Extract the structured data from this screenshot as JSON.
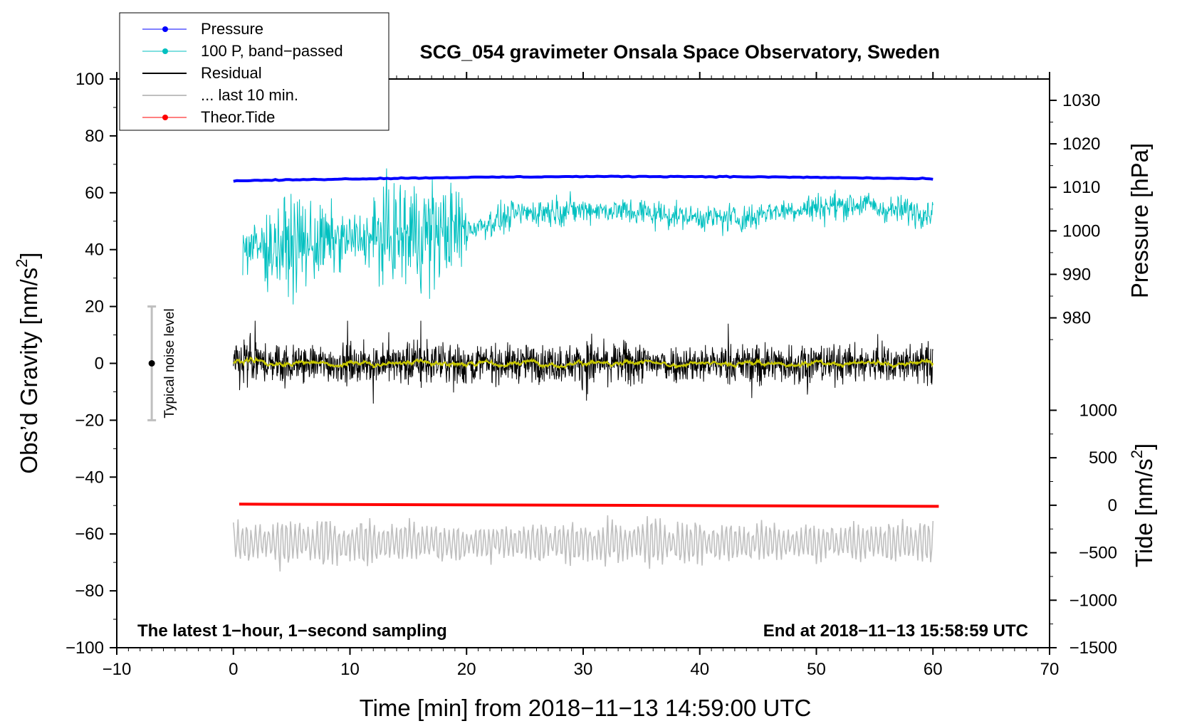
{
  "chart_data": {
    "type": "line",
    "title": "SCG_054 gravimeter Onsala Space Observatory, Sweden",
    "xlabel": "Time [min] from 2018−11−13 14:59:00 UTC",
    "ylabel_left": "Obs’d Gravity [nm/s2]",
    "ylabel_left_main": "Obs’d Gravity [nm/s",
    "ylabel_left_sup": "2",
    "ylabel_left_end": "]",
    "ylabel_pressure": "Pressure [hPa]",
    "ylabel_tide": "Tide [nm/s2]",
    "ylabel_tide_main": "Tide [nm/s",
    "ylabel_tide_sup": "2",
    "ylabel_tide_end": "]",
    "xlim": [
      -10,
      70
    ],
    "ylim": [
      -100,
      100
    ],
    "x_ticks": [
      "−10",
      "0",
      "10",
      "20",
      "30",
      "40",
      "50",
      "60",
      "70"
    ],
    "x_tick_values": [
      -10,
      0,
      10,
      20,
      30,
      40,
      50,
      60,
      70
    ],
    "y_ticks": [
      "100",
      "80",
      "60",
      "40",
      "20",
      "0",
      "−20",
      "−40",
      "−60",
      "−80",
      "−100"
    ],
    "y_tick_values": [
      100,
      80,
      60,
      40,
      20,
      0,
      -20,
      -40,
      -60,
      -80,
      -100
    ],
    "pressure_axis": {
      "ticks": [
        "1030",
        "1020",
        "1010",
        "1000",
        "990",
        "980"
      ],
      "tick_values": [
        1030,
        1020,
        1010,
        1000,
        990,
        980
      ],
      "range_hpa": [
        1030,
        980
      ],
      "range_plot_units": [
        92.5,
        16.0
      ]
    },
    "tide_axis": {
      "ticks": [
        "1000",
        "500",
        "0",
        "−500",
        "−1000",
        "−1500"
      ],
      "tick_values": [
        1000,
        500,
        0,
        -500,
        -1000,
        -1500
      ],
      "range_nms2": [
        1000,
        -1500
      ],
      "range_plot_units": [
        -16.5,
        -100
      ]
    },
    "series": [
      {
        "name": "Pressure",
        "color": "#0000ff",
        "x_range": [
          0,
          60
        ],
        "level_hpa": [
          1011.5,
          1012.5
        ],
        "note": "nearly flat, ~1011.5-1012.5 hPa"
      },
      {
        "name": "100 P, band−passed",
        "color": "#00c0c0",
        "x_range": [
          0.8,
          60
        ],
        "mean_start": 40,
        "mean_end": 52,
        "amplitude": 8
      },
      {
        "name": "Residual",
        "color": "#000000",
        "x_range": [
          0,
          60
        ],
        "mean": 0,
        "amplitude": 7
      },
      {
        "name": "... last 10 min.",
        "color": "#bfbfbf",
        "x_range": [
          0,
          60
        ],
        "mean": -63,
        "amplitude": 8
      },
      {
        "name": "Theor.Tide",
        "color": "#ff0000",
        "x_range": [
          0.5,
          60.5
        ],
        "start": -49.5,
        "end": -50.3
      }
    ],
    "noise_bar": {
      "label": "Typical noise level",
      "x": -7,
      "center": 0,
      "low": -20,
      "high": 20
    },
    "annotations": {
      "bottom_left": "The latest 1−hour, 1−second sampling",
      "bottom_right": "End at 2018−11−13 15:58:59 UTC"
    }
  },
  "colors": {
    "pressure": "#0000ff",
    "bandpassed": "#00c0c0",
    "residual": "#000000",
    "last10": "#bfbfbf",
    "tide": "#ff0000",
    "smooth": "#c8c800"
  }
}
